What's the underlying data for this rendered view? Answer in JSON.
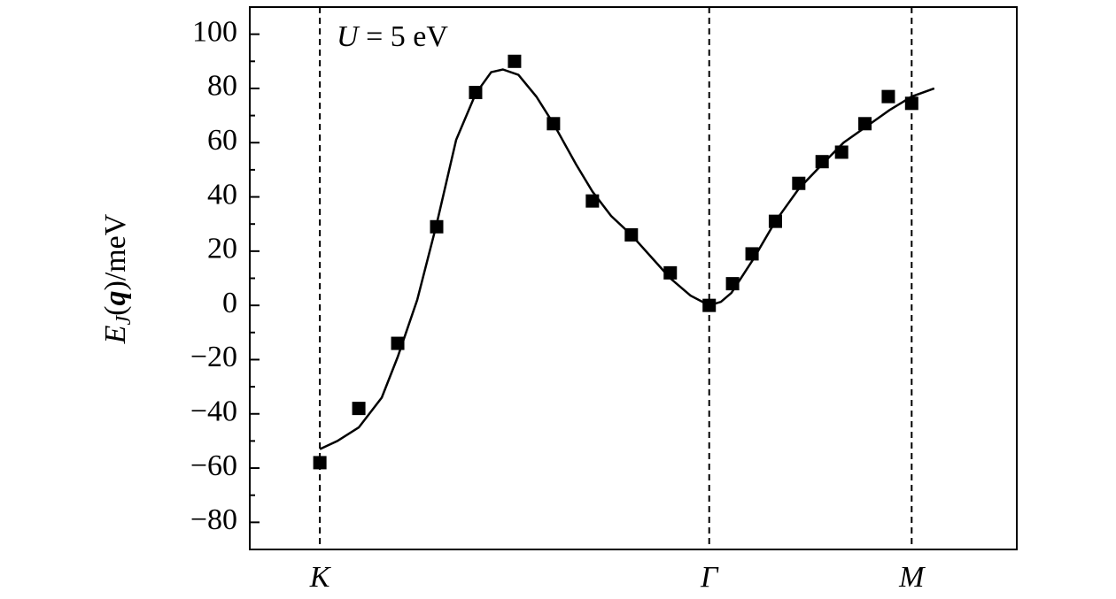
{
  "chart_data": {
    "type": "line",
    "y_label": [
      "E",
      "J",
      "(",
      "q",
      ")/meV"
    ],
    "annotation": [
      "U",
      " = 5 eV"
    ],
    "xlim": [
      -0.18,
      1.79
    ],
    "xticks": [
      {
        "value": 0,
        "label": "K"
      },
      {
        "value": 1,
        "label": "Γ"
      },
      {
        "value": 1.52,
        "label": "M"
      }
    ],
    "ylim": [
      -90,
      110
    ],
    "yticks": [
      {
        "value": -80,
        "label": "−80"
      },
      {
        "value": -60,
        "label": "−60"
      },
      {
        "value": -40,
        "label": "−40"
      },
      {
        "value": -20,
        "label": "−20"
      },
      0,
      20,
      40,
      60,
      80,
      100
    ],
    "yminorticks": [
      -70,
      -50,
      -30,
      -10,
      10,
      30,
      50,
      70,
      90
    ],
    "series": [
      {
        "mode": "line",
        "color": "#000000",
        "x": [
          0,
          0.045,
          0.1,
          0.159,
          0.2,
          0.25,
          0.3,
          0.35,
          0.4,
          0.44,
          0.47,
          0.51,
          0.556,
          0.6,
          0.658,
          0.7,
          0.748,
          0.8,
          0.85,
          0.9,
          0.952,
          1.0,
          1.03,
          1.057,
          1.113,
          1.17,
          1.23,
          1.29,
          1.345,
          1.404,
          1.463,
          1.52,
          1.578
        ],
        "values": [
          -53,
          -50,
          -45,
          -34,
          -19,
          2,
          30,
          61,
          78,
          86,
          87,
          85,
          77,
          67,
          52,
          42,
          33,
          26,
          18,
          10,
          3.6,
          0,
          1.3,
          4.6,
          17,
          31,
          43,
          52,
          60,
          66,
          72,
          77,
          80
        ]
      },
      {
        "mode": "marker",
        "color": "#000000",
        "x": [
          0,
          0.1,
          0.2,
          0.3,
          0.4,
          0.5,
          0.6,
          0.7,
          0.8,
          0.9,
          1.0,
          1.06,
          1.11,
          1.17,
          1.23,
          1.29,
          1.34,
          1.4,
          1.46,
          1.52
        ],
        "values": [
          -58,
          -38,
          -14,
          29,
          78.5,
          90,
          67,
          38.5,
          26,
          12,
          0,
          8,
          19,
          31,
          45,
          53,
          56.5,
          67,
          77,
          74.5
        ]
      }
    ]
  }
}
